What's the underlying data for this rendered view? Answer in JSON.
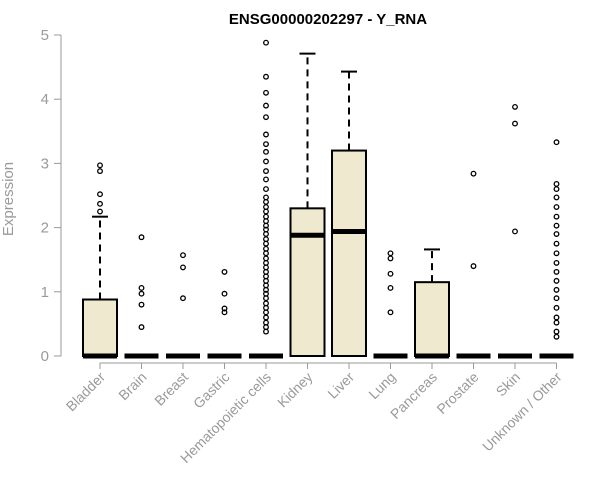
{
  "chart_data": {
    "type": "boxplot",
    "title": "ENSG00000202297 - Y_RNA",
    "xlabel": "",
    "ylabel": "Expression",
    "ylim": [
      0,
      5
    ],
    "yticks": [
      "0",
      "1",
      "2",
      "3",
      "4",
      "5"
    ],
    "grid": false,
    "legend": "none",
    "box_fill": "#efe9d0",
    "categories": [
      "Bladder",
      "Brain",
      "Breast",
      "Gastric",
      "Hematopoietic cells",
      "Kidney",
      "Liver",
      "Lung",
      "Pancreas",
      "Prostate",
      "Skin",
      "Unknown / Other"
    ],
    "boxes": [
      {
        "category": "Bladder",
        "q1": 0,
        "median": 0,
        "q3": 0.88,
        "whisker_low": 0,
        "whisker_high": 2.17,
        "outliers": [
          2.25,
          2.37,
          2.52,
          2.88,
          2.97
        ]
      },
      {
        "category": "Brain",
        "q1": 0,
        "median": 0,
        "q3": 0,
        "whisker_low": 0,
        "whisker_high": 0,
        "outliers": [
          0.45,
          0.8,
          0.97,
          1.06,
          1.85
        ]
      },
      {
        "category": "Breast",
        "q1": 0,
        "median": 0,
        "q3": 0,
        "whisker_low": 0,
        "whisker_high": 0,
        "outliers": [
          0.9,
          1.38,
          1.57
        ]
      },
      {
        "category": "Gastric",
        "q1": 0,
        "median": 0,
        "q3": 0,
        "whisker_low": 0,
        "whisker_high": 0,
        "outliers": [
          0.68,
          0.74,
          0.97,
          1.31
        ]
      },
      {
        "category": "Hematopoietic cells",
        "q1": 0,
        "median": 0,
        "q3": 0,
        "whisker_low": 0,
        "whisker_high": 0,
        "outliers": [
          0.38,
          0.45,
          0.52,
          0.6,
          0.68,
          0.75,
          0.82,
          0.9,
          0.97,
          1.03,
          1.1,
          1.17,
          1.24,
          1.31,
          1.38,
          1.45,
          1.52,
          1.6,
          1.67,
          1.75,
          1.82,
          1.9,
          1.97,
          2.03,
          2.1,
          2.17,
          2.25,
          2.32,
          2.4,
          2.47,
          2.6,
          2.75,
          2.88,
          3.03,
          3.18,
          3.3,
          3.45,
          3.72,
          3.9,
          4.1,
          4.35,
          4.88
        ]
      },
      {
        "category": "Kidney",
        "q1": 0,
        "median": 1.88,
        "q3": 2.3,
        "whisker_low": 0,
        "whisker_high": 4.71,
        "outliers": []
      },
      {
        "category": "Liver",
        "q1": 0,
        "median": 1.94,
        "q3": 3.2,
        "whisker_low": 0,
        "whisker_high": 4.43,
        "outliers": []
      },
      {
        "category": "Lung",
        "q1": 0,
        "median": 0,
        "q3": 0,
        "whisker_low": 0,
        "whisker_high": 0,
        "outliers": [
          0.68,
          1.06,
          1.28,
          1.52,
          1.6
        ]
      },
      {
        "category": "Pancreas",
        "q1": 0,
        "median": 0,
        "q3": 1.15,
        "whisker_low": 0,
        "whisker_high": 1.66,
        "outliers": []
      },
      {
        "category": "Prostate",
        "q1": 0,
        "median": 0,
        "q3": 0,
        "whisker_low": 0,
        "whisker_high": 0,
        "outliers": [
          1.4,
          2.84
        ]
      },
      {
        "category": "Skin",
        "q1": 0,
        "median": 0,
        "q3": 0,
        "whisker_low": 0,
        "whisker_high": 0,
        "outliers": [
          1.94,
          3.62,
          3.88
        ]
      },
      {
        "category": "Unknown / Other",
        "q1": 0,
        "median": 0,
        "q3": 0,
        "whisker_low": 0,
        "whisker_high": 0,
        "outliers": [
          0.3,
          0.38,
          0.52,
          0.6,
          0.75,
          0.9,
          1.03,
          1.17,
          1.31,
          1.45,
          1.6,
          1.75,
          1.9,
          2.03,
          2.17,
          2.32,
          2.47,
          2.6,
          2.68,
          3.33
        ]
      }
    ]
  }
}
